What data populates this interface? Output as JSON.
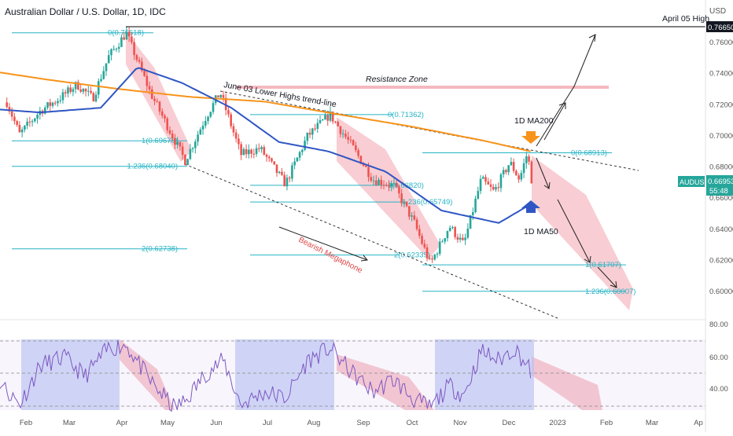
{
  "header": {
    "title": "Australian Dollar / U.S. Dollar, 1D, IDC"
  },
  "currency_label": "USD",
  "colors": {
    "candle_up": "#26a69a",
    "candle_down": "#ef5350",
    "ma200": "#f7931a",
    "ma50": "#2f56c4",
    "fib": "#26b4c4",
    "channel": "#f5b8c0",
    "rsi_line": "#7e57c2",
    "rsi_box": "#b8c4f5",
    "price_badge": "#26a69a"
  },
  "chart_data": [
    {
      "type": "candlestick",
      "title": "Australian Dollar / U.S. Dollar, 1D, IDC",
      "ylim": [
        0.585,
        0.772
      ],
      "x_ticks": [
        "Feb",
        "Mar",
        "Apr",
        "May",
        "Jun",
        "Jul",
        "Aug",
        "Sep",
        "Oct",
        "Nov",
        "Dec",
        "2023",
        "Feb",
        "Mar",
        "Ap"
      ],
      "y_ticks": [
        "0.76000",
        "0.74000",
        "0.72000",
        "0.70000",
        "0.68000",
        "0.66000",
        "0.64000",
        "0.62000",
        "0.60000"
      ],
      "price_anchors": [
        {
          "date": "Jan 20",
          "value": 0.7215
        },
        {
          "date": "Jan 28",
          "value": 0.701
        },
        {
          "date": "Feb 10",
          "value": 0.716
        },
        {
          "date": "Feb 22",
          "value": 0.724
        },
        {
          "date": "Mar 05",
          "value": 0.733
        },
        {
          "date": "Mar 15",
          "value": 0.724
        },
        {
          "date": "Mar 25",
          "value": 0.751
        },
        {
          "date": "Apr 05",
          "value": 0.7661
        },
        {
          "date": "Apr 20",
          "value": 0.728
        },
        {
          "date": "May 01",
          "value": 0.706
        },
        {
          "date": "May 12",
          "value": 0.684
        },
        {
          "date": "May 25",
          "value": 0.712
        },
        {
          "date": "Jun 03",
          "value": 0.728
        },
        {
          "date": "Jun 16",
          "value": 0.688
        },
        {
          "date": "Jun 28",
          "value": 0.692
        },
        {
          "date": "Jul 14",
          "value": 0.669
        },
        {
          "date": "Jul 28",
          "value": 0.7
        },
        {
          "date": "Aug 11",
          "value": 0.7136
        },
        {
          "date": "Aug 25",
          "value": 0.693
        },
        {
          "date": "Sep 07",
          "value": 0.672
        },
        {
          "date": "Sep 20",
          "value": 0.668
        },
        {
          "date": "Oct 03",
          "value": 0.644
        },
        {
          "date": "Oct 13",
          "value": 0.6175
        },
        {
          "date": "Oct 25",
          "value": 0.642
        },
        {
          "date": "Nov 03",
          "value": 0.63
        },
        {
          "date": "Nov 14",
          "value": 0.672
        },
        {
          "date": "Nov 22",
          "value": 0.664
        },
        {
          "date": "Dec 02",
          "value": 0.683
        },
        {
          "date": "Dec 08",
          "value": 0.672
        },
        {
          "date": "Dec 13",
          "value": 0.6891
        },
        {
          "date": "Dec 16",
          "value": 0.6695
        }
      ],
      "series": [
        {
          "name": "1D MA200",
          "values": [
            {
              "date": "Jan 01",
              "value": 0.743
            },
            {
              "date": "Feb 15",
              "value": 0.736
            },
            {
              "date": "Apr 01",
              "value": 0.73
            },
            {
              "date": "May 15",
              "value": 0.725
            },
            {
              "date": "Jul 01",
              "value": 0.722
            },
            {
              "date": "Aug 15",
              "value": 0.714
            },
            {
              "date": "Oct 01",
              "value": 0.706
            },
            {
              "date": "Nov 15",
              "value": 0.697
            },
            {
              "date": "Dec 15",
              "value": 0.69
            }
          ]
        },
        {
          "name": "1D MA50",
          "values": [
            {
              "date": "Jan 01",
              "value": 0.718
            },
            {
              "date": "Feb 10",
              "value": 0.715
            },
            {
              "date": "Mar 20",
              "value": 0.718
            },
            {
              "date": "Apr 12",
              "value": 0.744
            },
            {
              "date": "May 10",
              "value": 0.734
            },
            {
              "date": "Jun 10",
              "value": 0.718
            },
            {
              "date": "Jul 10",
              "value": 0.696
            },
            {
              "date": "Aug 10",
              "value": 0.69
            },
            {
              "date": "Sep 15",
              "value": 0.677
            },
            {
              "date": "Oct 20",
              "value": 0.652
            },
            {
              "date": "Nov 25",
              "value": 0.644
            },
            {
              "date": "Dec 15",
              "value": 0.656
            }
          ]
        }
      ],
      "last_price": {
        "symbol": "AUDUSD",
        "value": "0.66953",
        "countdown": "55:48"
      },
      "high_label": {
        "value": "0.76650",
        "text": "April 05 High"
      },
      "fib_levels": [
        {
          "label": "0(0.76618)",
          "value": 0.7662
        },
        {
          "label": "1(0.69678)",
          "value": 0.6968
        },
        {
          "label": "1.236(0.68040)",
          "value": 0.6804
        },
        {
          "label": "2(0.62738)",
          "value": 0.6274
        },
        {
          "label": "0(0.71362)",
          "value": 0.7136
        },
        {
          "label": "1(0.66820)",
          "value": 0.6682
        },
        {
          "label": "1.236(0.65749)",
          "value": 0.6575
        },
        {
          "label": "2(0.62339)",
          "value": 0.6234
        },
        {
          "label": "0(0.68913)",
          "value": 0.6891
        },
        {
          "label": "1(0.61707)",
          "value": 0.6171
        },
        {
          "label": "1.236(0.60007)",
          "value": 0.6001
        }
      ],
      "annotations": [
        "June 03 Lower Highs trend-line",
        "Resistance Zone",
        "Bearish Megaphone",
        "1D MA200",
        "1D MA50"
      ]
    },
    {
      "type": "line",
      "title": "",
      "ylim": [
        25,
        75
      ],
      "y_ticks": [
        "80.00",
        "60.00",
        "40.00"
      ],
      "reference_lines": [
        70,
        50,
        30
      ],
      "rsi_anchors": [
        {
          "date": "Jan 01",
          "value": 42
        },
        {
          "date": "Jan 12",
          "value": 48
        },
        {
          "date": "Jan 28",
          "value": 30
        },
        {
          "date": "Feb 10",
          "value": 55
        },
        {
          "date": "Feb 25",
          "value": 60
        },
        {
          "date": "Mar 10",
          "value": 48
        },
        {
          "date": "Mar 25",
          "value": 66
        },
        {
          "date": "Apr 05",
          "value": 68
        },
        {
          "date": "Apr 20",
          "value": 45
        },
        {
          "date": "May 05",
          "value": 28
        },
        {
          "date": "May 12",
          "value": 32
        },
        {
          "date": "May 25",
          "value": 50
        },
        {
          "date": "Jun 05",
          "value": 58
        },
        {
          "date": "Jun 16",
          "value": 30
        },
        {
          "date": "Jul 01",
          "value": 38
        },
        {
          "date": "Jul 14",
          "value": 34
        },
        {
          "date": "Jul 28",
          "value": 58
        },
        {
          "date": "Aug 11",
          "value": 66
        },
        {
          "date": "Aug 25",
          "value": 50
        },
        {
          "date": "Sep 07",
          "value": 38
        },
        {
          "date": "Sep 20",
          "value": 46
        },
        {
          "date": "Oct 03",
          "value": 33
        },
        {
          "date": "Oct 13",
          "value": 28
        },
        {
          "date": "Oct 25",
          "value": 42
        },
        {
          "date": "Nov 03",
          "value": 36
        },
        {
          "date": "Nov 14",
          "value": 64
        },
        {
          "date": "Nov 25",
          "value": 58
        },
        {
          "date": "Dec 05",
          "value": 66
        },
        {
          "date": "Dec 16",
          "value": 50
        }
      ]
    }
  ]
}
